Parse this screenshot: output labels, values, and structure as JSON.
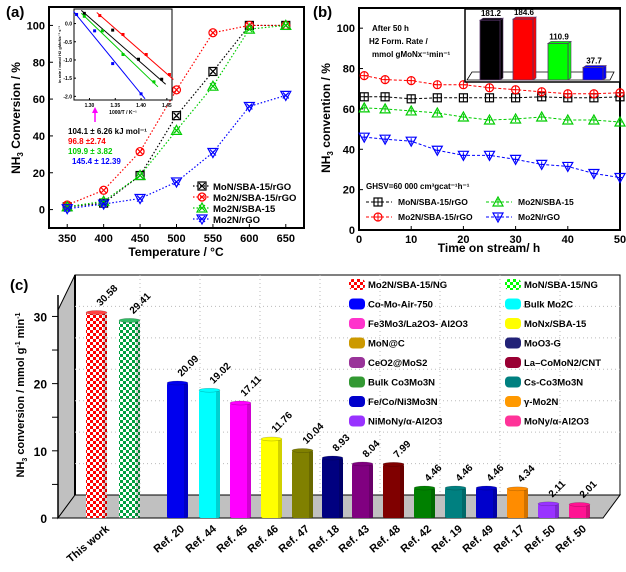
{
  "chart_data": [
    {
      "panel": "(a)",
      "type": "line",
      "xlabel": "Temperature / °C",
      "ylabel": "NH3 Conversion / %",
      "xlim": [
        325,
        675
      ],
      "ylim": [
        -10,
        110
      ],
      "xticks": [
        350,
        400,
        450,
        500,
        550,
        600,
        650
      ],
      "yticks": [
        0,
        20,
        40,
        60,
        80,
        100
      ],
      "x": [
        350,
        400,
        450,
        500,
        550,
        600,
        650
      ],
      "series": [
        {
          "name": "MoN/SBA-15/rGO",
          "color": "#000000",
          "marker": "square-x",
          "values": [
            1.5,
            3.5,
            18.5,
            51,
            75,
            100,
            100
          ]
        },
        {
          "name": "Mo2N/SBA-15/rGO",
          "color": "#ff0000",
          "marker": "circle-x",
          "values": [
            2.5,
            10.5,
            31.5,
            65,
            96,
            100,
            100
          ]
        },
        {
          "name": "Mo2N/SBA-15",
          "color": "#00cc00",
          "marker": "triangle-x",
          "values": [
            1.5,
            4.5,
            18.5,
            43,
            67,
            98,
            100
          ]
        },
        {
          "name": "Mo2N/rGO",
          "color": "#0000ff",
          "marker": "triangle-down-x",
          "values": [
            0.5,
            3,
            6,
            15,
            31,
            56,
            62
          ]
        }
      ],
      "legend": "bottom-right",
      "inset": {
        "xlabel": "1000/T / K⁻¹",
        "ylabel": "ln rate / mmol H2 gMoNx⁻¹ s⁻¹",
        "xlim": [
          1.27,
          1.46
        ],
        "ylim": [
          -2.1,
          0.4
        ],
        "xticks": [
          1.3,
          1.35,
          1.4,
          1.45
        ],
        "yticks": [
          0.0,
          -0.5,
          -1.0,
          -1.5,
          -2.0
        ],
        "series": [
          {
            "color": "#000000",
            "x": [
              1.29,
              1.345,
              1.395,
              1.44
            ],
            "y": [
              0.28,
              -0.18,
              -0.98,
              -1.53
            ]
          },
          {
            "color": "#ff0000",
            "x": [
              1.32,
              1.365,
              1.41,
              1.455
            ],
            "y": [
              0.22,
              -0.3,
              -0.85,
              -1.4
            ]
          },
          {
            "color": "#00cc00",
            "x": [
              1.29,
              1.325,
              1.365,
              1.425
            ],
            "y": [
              0.2,
              -0.2,
              -0.85,
              -1.6
            ]
          },
          {
            "color": "#0000ff",
            "x": [
              1.275,
              1.31,
              1.345,
              1.4
            ],
            "y": [
              0.25,
              -0.2,
              -1.1,
              -1.93
            ]
          }
        ]
      },
      "annotations": [
        {
          "text": "104.1 ± 6.26 kJ mol⁻¹",
          "color": "#000000"
        },
        {
          "text": "96.8 ±2.74",
          "color": "#ff0000"
        },
        {
          "text": "109.9 ± 3.82",
          "color": "#00cc00"
        },
        {
          "text": "145.4 ± 12.39",
          "color": "#0000ff"
        }
      ]
    },
    {
      "panel": "(b)",
      "type": "line",
      "xlabel": "Time on stream/ h",
      "ylabel": "NH3 convention / %",
      "xlim": [
        0,
        50
      ],
      "ylim": [
        0,
        110
      ],
      "xticks": [
        0,
        10,
        20,
        30,
        40,
        50
      ],
      "yticks": [
        0,
        20,
        40,
        60,
        80,
        100
      ],
      "x": [
        1,
        5,
        10,
        15,
        20,
        25,
        30,
        35,
        40,
        45,
        50
      ],
      "series": [
        {
          "name": "MoN/SBA-15/rGO",
          "color": "#000000",
          "marker": "square-plus",
          "values": [
            66,
            66,
            65,
            65.5,
            65.5,
            65.5,
            65.5,
            66,
            65.5,
            65.5,
            66
          ]
        },
        {
          "name": "Mo2N/SBA-15/rGO",
          "color": "#ff0000",
          "marker": "circle-plus",
          "values": [
            76.5,
            74.5,
            74,
            72,
            72,
            70.5,
            69.5,
            68.5,
            67.5,
            67.5,
            68
          ]
        },
        {
          "name": "Mo2N/SBA-15",
          "color": "#00cc00",
          "marker": "triangle-up",
          "values": [
            60.5,
            60,
            59,
            58,
            56,
            54.5,
            55,
            56,
            54.5,
            54.5,
            53.5
          ]
        },
        {
          "name": "Mo2N/rGO",
          "color": "#0000ff",
          "marker": "triangle-down",
          "values": [
            46,
            45,
            44,
            39.5,
            37,
            37,
            35,
            32.5,
            31.5,
            28,
            26
          ]
        }
      ],
      "legend": "bottom",
      "annotations": [
        {
          "text": "After 50 h"
        },
        {
          "text": "H2 Form. Rate /"
        },
        {
          "text": "mmol gMoNx⁻¹min⁻¹"
        },
        {
          "text": "GHSV=60 000 cm³gcat⁻¹h⁻¹"
        }
      ],
      "inset": {
        "type": "bar",
        "values": [
          181.2,
          184.6,
          110.9,
          37.7
        ],
        "colors": [
          "#000000",
          "#ff0000",
          "#00ff00",
          "#0000ff"
        ],
        "labels": [
          "181.2",
          "184.6",
          "110.9",
          "37.7"
        ]
      }
    },
    {
      "panel": "(c)",
      "type": "bar",
      "ylabel": "NH3 conversion / mmol g⁻¹ min⁻¹",
      "ylim": [
        0,
        35
      ],
      "yticks": [
        0,
        10,
        20,
        30
      ],
      "grid": true,
      "categories": [
        "This work",
        "This work",
        "Ref. 20",
        "Ref. 44",
        "Ref. 45",
        "Ref. 46",
        "Ref. 47",
        "Ref. 18",
        "Ref. 43",
        "Ref. 48",
        "Ref. 42",
        "Ref. 19",
        "Ref. 49",
        "Ref. 17",
        "Ref. 50",
        "Ref. 50"
      ],
      "xticklabels": [
        "This work",
        "Ref. 20",
        "Ref. 44",
        "Ref. 45",
        "Ref. 46",
        "Ref. 47",
        "Ref. 18",
        "Ref. 43",
        "Ref. 48",
        "Ref. 42",
        "Ref. 19",
        "Ref. 49",
        "Ref. 17",
        "Ref. 50",
        "Ref. 50"
      ],
      "values": [
        30.58,
        29.41,
        20.09,
        19.02,
        17.11,
        11.76,
        10.04,
        8.93,
        8.04,
        7.99,
        4.46,
        4.46,
        4.46,
        4.34,
        2.11,
        2.01
      ],
      "labels": [
        "30.58",
        "29.41",
        "20.09",
        "19.02",
        "17.11",
        "11.76",
        "10.04",
        "8.93",
        "8.04",
        "7.99",
        "4.46",
        "4.46",
        "4.46",
        "4.34",
        "2.11",
        "2.01"
      ],
      "colors": [
        "#ff0000",
        "#00a040",
        "#0000ee",
        "#00ffff",
        "#ff00ff",
        "#ffff00",
        "#808000",
        "#000080",
        "#800080",
        "#800000",
        "#008000",
        "#008080",
        "#0000cc",
        "#ff8c00",
        "#9933ff",
        "#ff1493"
      ],
      "patterns": [
        "check",
        "check",
        "",
        "",
        "",
        "",
        "",
        "",
        "",
        "",
        "",
        "",
        "",
        "",
        "",
        ""
      ],
      "legend": {
        "placement": "top-right",
        "entries": [
          {
            "name": "Mo2N/SBA-15/NG",
            "color": "#ff0000",
            "pattern": "check"
          },
          {
            "name": "MoN/SBA-15/NG",
            "color": "#00ff00",
            "pattern": "check"
          },
          {
            "name": "Co-Mo-Air-750",
            "color": "#0000ff"
          },
          {
            "name": "Bulk Mo2C",
            "color": "#00ffff"
          },
          {
            "name": "Fe3Mo3/La2O3- Al2O3",
            "color": "#ff33cc"
          },
          {
            "name": "MoNx/SBA-15",
            "color": "#ffff00"
          },
          {
            "name": "MoN@C",
            "color": "#cc9900"
          },
          {
            "name": "MoO3-G",
            "color": "#222277"
          },
          {
            "name": "CeO2@MoS2",
            "color": "#993399"
          },
          {
            "name": "La–CoMoN2/CNT",
            "color": "#990033"
          },
          {
            "name": "Bulk Co3Mo3N",
            "color": "#339933"
          },
          {
            "name": "Cs-Co3Mo3N",
            "color": "#008080"
          },
          {
            "name": "Fe/Co/Ni3Mo3N",
            "color": "#0000cc"
          },
          {
            "name": "γ-Mo2N",
            "color": "#ff9900"
          },
          {
            "name": "NiMoNy/α-Al2O3",
            "color": "#9933ff"
          },
          {
            "name": "MoNy/α-Al2O3",
            "color": "#ff3399"
          }
        ]
      }
    }
  ]
}
